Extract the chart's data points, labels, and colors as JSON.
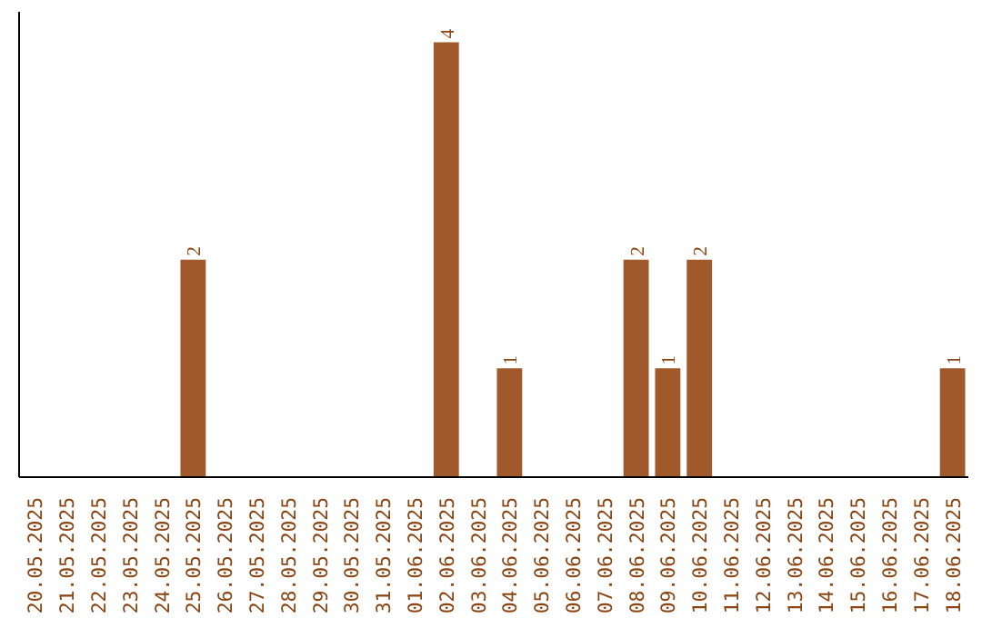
{
  "chart_data": {
    "type": "bar",
    "categories": [
      "20.05.2025",
      "21.05.2025",
      "22.05.2025",
      "23.05.2025",
      "24.05.2025",
      "25.05.2025",
      "26.05.2025",
      "27.05.2025",
      "28.05.2025",
      "29.05.2025",
      "30.05.2025",
      "31.05.2025",
      "01.06.2025",
      "02.06.2025",
      "03.06.2025",
      "04.06.2025",
      "05.06.2025",
      "06.06.2025",
      "07.06.2025",
      "08.06.2025",
      "09.06.2025",
      "10.06.2025",
      "11.06.2025",
      "12.06.2025",
      "13.06.2025",
      "14.06.2025",
      "15.06.2025",
      "16.06.2025",
      "17.06.2025",
      "18.06.2025"
    ],
    "values": [
      0,
      0,
      0,
      0,
      0,
      2,
      0,
      0,
      0,
      0,
      0,
      0,
      0,
      4,
      0,
      1,
      0,
      0,
      0,
      2,
      1,
      2,
      0,
      0,
      0,
      0,
      0,
      0,
      0,
      1
    ],
    "value_labels": [
      null,
      null,
      null,
      null,
      null,
      "2",
      null,
      null,
      null,
      null,
      null,
      null,
      null,
      "4",
      null,
      "1",
      null,
      null,
      null,
      "2",
      "1",
      "2",
      null,
      null,
      null,
      null,
      null,
      null,
      null,
      "1"
    ],
    "color": "#a0592a",
    "grid": false
  }
}
